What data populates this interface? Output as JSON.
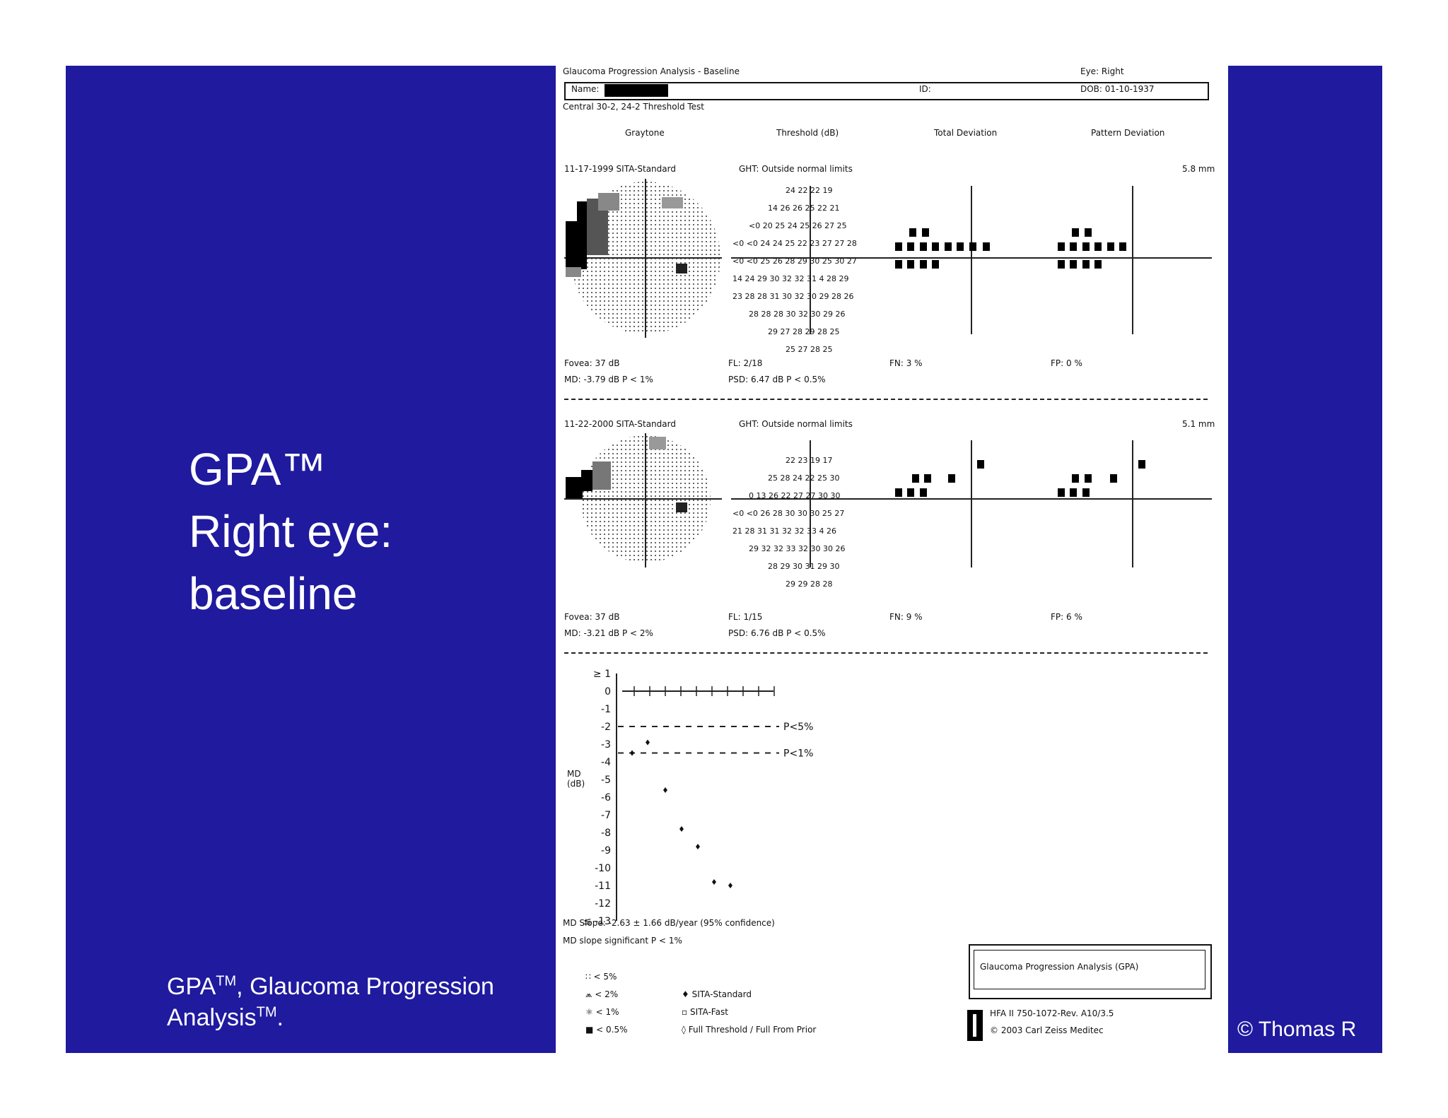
{
  "slide": {
    "title_lines": [
      "GPA™",
      "Right eye:",
      "baseline"
    ],
    "footnote": {
      "line1_a": "GPA",
      "line1_sup": "TM",
      "line1_b": ", Glaucoma Progression",
      "line2_a": "Analysis",
      "line2_sup": "TM",
      "line2_b": "."
    },
    "copyright": "© Thomas R"
  },
  "report": {
    "header_title": "Glaucoma Progression Analysis - Baseline",
    "eye": "Eye: Right",
    "name_label": "Name:",
    "id_label": "ID:",
    "dob": "DOB: 01-10-1937",
    "test": "Central 30-2, 24-2 Threshold Test",
    "columns": [
      "Graytone",
      "Threshold (dB)",
      "Total Deviation",
      "Pattern Deviation"
    ],
    "exam1": {
      "date_strategy": "11-17-1999 SITA-Standard",
      "ght": "GHT: Outside normal limits",
      "pupil": "5.8 mm",
      "fovea": "Fovea: 37 dB",
      "fl": "FL: 2/18",
      "fn": "FN:  3 %",
      "fp": "FP:  0 %",
      "md": "MD:  -3.79 dB  P < 1%",
      "psd": "PSD:  6.47 dB  P < 0.5%",
      "rows": [
        "24 22 22 19",
        "14 26 26 25 22 21",
        "<0 20 25 24 25 26 27 25",
        "<0 <0 24 24 25 22 23 27 27 28",
        "<0 <0 25 26 28 29 30 25 30 27",
        "14 24 29 30 32 32 31 4 28 29",
        "23 28 28 31 30 32 30 29 28 26",
        "28 28 28 30 32 30 29 26",
        "29 27 28 29 28 25",
        "25 27 28 25"
      ]
    },
    "exam2": {
      "date_strategy": "11-22-2000 SITA-Standard",
      "ght": "GHT: Outside normal limits",
      "pupil": "5.1 mm",
      "fovea": "Fovea: 37 dB",
      "fl": "FL: 1/15",
      "fn": "FN:  9 %",
      "fp": "FP:  6 %",
      "md": "MD:  -3.21 dB  P < 2%",
      "psd": "PSD:  6.76 dB  P < 0.5%",
      "rows": [
        "22 23 19 17",
        "25 28 24 22 25 30",
        "0 13 26 22 27 27 30 30",
        "<0 <0 26 28 30 30 30 25 27",
        "21 28 31 31 32 32 33 4 26",
        "29 32 32 33 32 30 30 26",
        "28 29 30 31 29 30",
        "29 29 28 28"
      ]
    },
    "chart_data": {
      "type": "scatter",
      "ylabel": "MD\n(dB)",
      "yticks": [
        "≥ 1",
        "0",
        "-1",
        "-2",
        "-3",
        "-4",
        "-5",
        "-6",
        "-7",
        "-8",
        "-9",
        "-10",
        "-11",
        "-12",
        "≤ -13"
      ],
      "ylim": [
        -13,
        1
      ],
      "reference_lines": [
        {
          "label": "P<5%",
          "y": -2
        },
        {
          "label": "P<1%",
          "y": -3.5
        }
      ],
      "series": [
        {
          "values": [
            -3.5,
            -2.9,
            -5.6,
            -7.8,
            -8.8,
            -10.8,
            -11.0
          ]
        }
      ],
      "md_slope": "MD Slope: -2.63 ± 1.66 dB/year (95% confidence)",
      "md_slope_sig": "MD slope significant  P < 1%"
    },
    "legend_prob": [
      "< 5%",
      "< 2%",
      "< 1%",
      "< 0.5%"
    ],
    "legend_strategy": [
      "SITA-Standard",
      "SITA-Fast",
      "Full Threshold / Full From Prior"
    ],
    "gpa_box": "Glaucoma Progression Analysis (GPA)",
    "hfa": "HFA II 750-1072-Rev. A10/3.5",
    "zeiss": "© 2003 Carl Zeiss Meditec"
  }
}
